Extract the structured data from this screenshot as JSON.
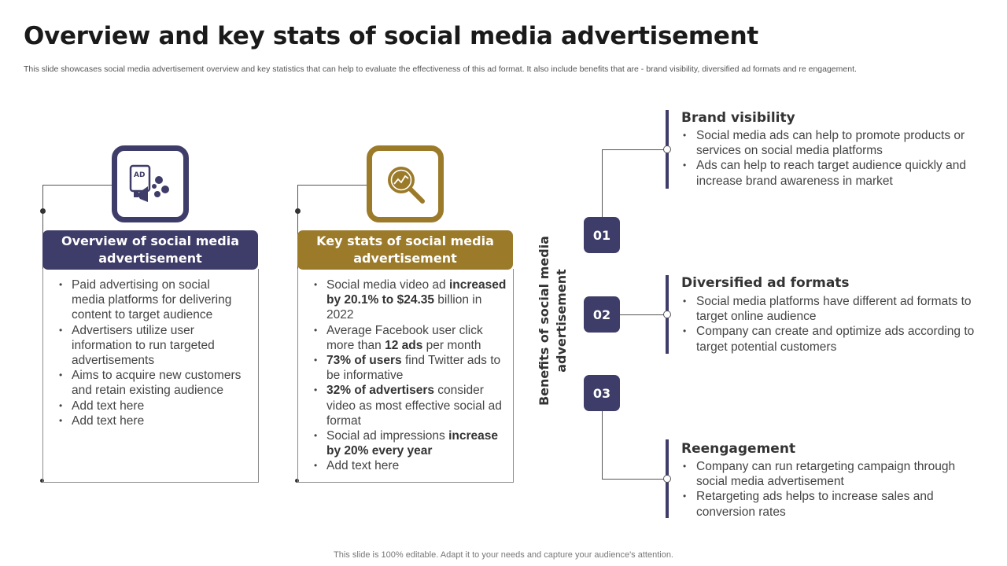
{
  "header": {
    "title": "Overview and key stats of social media advertisement",
    "subtitle": "This slide showcases social media advertisement overview and key statistics that can help to evaluate the effectiveness of this ad format. It also include benefits that are -  brand visibility, diversified ad formats and re engagement."
  },
  "colors": {
    "navy": "#3e3c68",
    "gold": "#9b7a2a"
  },
  "overview": {
    "icon": "ad-megaphone-icon",
    "heading": "Overview of social media advertisement",
    "bullets": [
      "Paid advertising on social media platforms for delivering content to target audience",
      "Advertisers utilize user information to run targeted advertisements",
      "Aims to acquire new customers and retain existing audience",
      "Add text here",
      "Add text here"
    ]
  },
  "keystats": {
    "icon": "magnifier-chart-icon",
    "heading": "Key stats of social media advertisement",
    "b1": {
      "pre": "Social media video ad ",
      "bold": "increased by 20.1% to $24.35",
      "post": " billion in 2022"
    },
    "b2": {
      "pre": "Average Facebook user click more than ",
      "bold": "12 ads",
      "post": " per month"
    },
    "b3": {
      "bold": "73% of users",
      "post": " find Twitter ads to be informative"
    },
    "b4": {
      "bold": "32% of advertisers",
      "post": " consider video as most effective social ad format"
    },
    "b5": {
      "pre": "Social ad impressions ",
      "bold": "increase by 20% every year"
    },
    "b6": "Add text here"
  },
  "benefits": {
    "side_label": "Benefits of social media advertisement",
    "items": [
      {
        "number": "01",
        "title": "Brand visibility",
        "bullets": [
          "Social media ads can help to promote products or services on social media platforms",
          "Ads can help to reach target audience quickly and increase brand awareness in market"
        ]
      },
      {
        "number": "02",
        "title": "Diversified ad formats",
        "bullets": [
          "Social media platforms have different ad formats to target online audience",
          "Company can create and optimize ads according to target potential customers"
        ]
      },
      {
        "number": "03",
        "title": "Reengagement",
        "bullets": [
          "Company can run retargeting campaign through social media advertisement",
          "Retargeting ads helps to increase sales and conversion rates"
        ]
      }
    ]
  },
  "footer": {
    "text": "This slide is 100% editable. Adapt it to your needs and capture your audience's attention."
  }
}
